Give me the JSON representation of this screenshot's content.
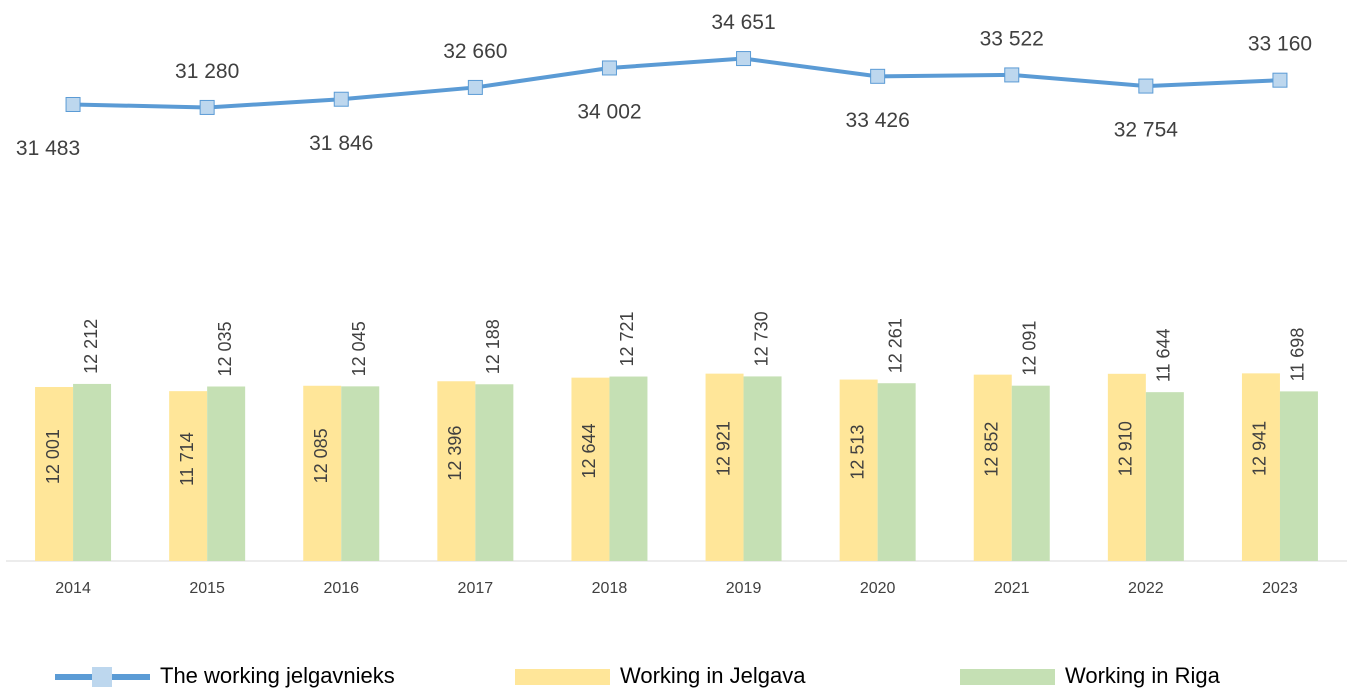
{
  "chart_data": {
    "type": "bar_line",
    "categories": [
      "2014",
      "2015",
      "2016",
      "2017",
      "2018",
      "2019",
      "2020",
      "2021",
      "2022",
      "2023"
    ],
    "ylim": [
      0,
      38000
    ],
    "series": [
      {
        "name": "The working jelgavnieks",
        "kind": "line",
        "color": "#5b9bd5",
        "marker_color": "#bdd7ee",
        "values": [
          31483,
          31280,
          31846,
          32660,
          34002,
          34651,
          33426,
          33522,
          32754,
          33160
        ],
        "value_labels": [
          "31 483",
          "31 280",
          "31 846",
          "32 660",
          "34 002",
          "34 651",
          "33 426",
          "33 522",
          "32 754",
          "33 160"
        ]
      },
      {
        "name": "Working in Jelgava",
        "kind": "bar",
        "color": "#ffe699",
        "values": [
          12001,
          11714,
          12085,
          12396,
          12644,
          12921,
          12513,
          12852,
          12910,
          12941
        ],
        "value_labels": [
          "12 001",
          "11 714",
          "12 085",
          "12 396",
          "12 644",
          "12 921",
          "12 513",
          "12 852",
          "12 910",
          "12 941"
        ]
      },
      {
        "name": "Working in Riga",
        "kind": "bar",
        "color": "#c5e0b4",
        "values": [
          12212,
          12035,
          12045,
          12188,
          12721,
          12730,
          12261,
          12091,
          11644,
          11698
        ],
        "value_labels": [
          "12 212",
          "12 035",
          "12 045",
          "12 188",
          "12 721",
          "12 730",
          "12 261",
          "12 091",
          "11 644",
          "11 698"
        ]
      }
    ]
  }
}
